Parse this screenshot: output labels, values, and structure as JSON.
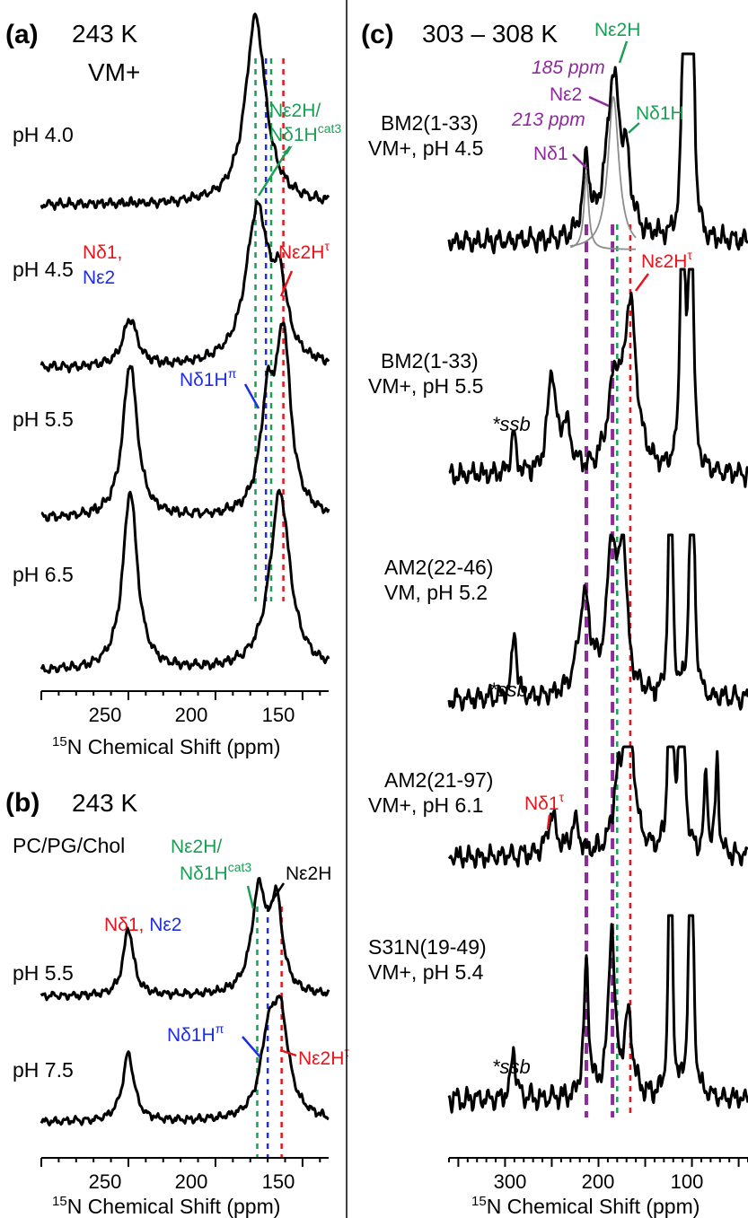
{
  "colors": {
    "spectrum": "#000000",
    "green": "#1b9e55",
    "red": "#e8141b",
    "blue": "#1f2ee0",
    "purple": "#8e2a9c",
    "fit": "#8c8c8c"
  },
  "chart_data": [
    {
      "type": "line",
      "panel_label": "(a)",
      "header": "243 K",
      "subheader": "VM+",
      "xlabel_prefix": "15",
      "xlabel": "N Chemical Shift (ppm)",
      "xlim": [
        300,
        135
      ],
      "xticks": [
        "250",
        "200",
        "150"
      ],
      "traces": [
        {
          "label": "pH 4.0",
          "peaks": [
            {
              "x": 177,
              "h": 1.0,
              "w": 7
            }
          ]
        },
        {
          "label": "pH 4.5",
          "peaks": [
            {
              "x": 249,
              "h": 0.25,
              "w": 5
            },
            {
              "x": 176,
              "h": 0.82,
              "w": 8
            },
            {
              "x": 163,
              "h": 0.35,
              "w": 5
            }
          ]
        },
        {
          "label": "pH 5.5",
          "peaks": [
            {
              "x": 249,
              "h": 0.82,
              "w": 5
            },
            {
              "x": 170,
              "h": 0.55,
              "w": 5
            },
            {
              "x": 161,
              "h": 0.92,
              "w": 5
            }
          ]
        },
        {
          "label": "pH 6.5",
          "peaks": [
            {
              "x": 249,
              "h": 0.95,
              "w": 5
            },
            {
              "x": 163,
              "h": 0.95,
              "w": 7
            }
          ]
        }
      ],
      "annotations": [
        {
          "text": "Nε2H/",
          "color": "green"
        },
        {
          "text": "Nδ1H",
          "sup": "cat3",
          "color": "green"
        },
        {
          "text": "Nδ1,",
          "color": "red"
        },
        {
          "text": "Nε2",
          "color": "blue"
        },
        {
          "text": "Nε2H",
          "sup": "τ",
          "color": "red"
        },
        {
          "text": "Nδ1H",
          "sup": "π",
          "color": "blue"
        }
      ],
      "reference_lines": [
        {
          "x": 177,
          "color": "green"
        },
        {
          "x": 168,
          "color": "green"
        },
        {
          "x": 161,
          "color": "red"
        },
        {
          "x": 171,
          "color": "blue"
        }
      ]
    },
    {
      "type": "line",
      "panel_label": "(b)",
      "header": "243 K",
      "subheader": "PC/PG/Chol",
      "xlabel_prefix": "15",
      "xlabel": "N Chemical Shift (ppm)",
      "xlim": [
        300,
        135
      ],
      "xticks": [
        "250",
        "200",
        "150"
      ],
      "traces": [
        {
          "label": "pH 5.5",
          "peaks": [
            {
              "x": 250,
              "h": 0.6,
              "w": 3.5
            },
            {
              "x": 175,
              "h": 0.92,
              "w": 5
            },
            {
              "x": 165,
              "h": 0.78,
              "w": 4
            }
          ]
        },
        {
          "label": "pH 7.5",
          "peaks": [
            {
              "x": 250,
              "h": 0.6,
              "w": 4
            },
            {
              "x": 170,
              "h": 0.55,
              "w": 5
            },
            {
              "x": 163,
              "h": 0.92,
              "w": 6
            }
          ]
        }
      ],
      "annotations": [
        {
          "text": "Nε2H/",
          "color": "green"
        },
        {
          "text": "Nδ1H",
          "sup": "cat3",
          "color": "green"
        },
        {
          "text": "Nε2H",
          "color": "black"
        },
        {
          "text": "Nδ1, ",
          "color": "red"
        },
        {
          "text": "Nε2",
          "color": "blue"
        },
        {
          "text": "Nδ1H",
          "sup": "π",
          "color": "blue"
        },
        {
          "text": "Nε2H",
          "sup": "τ",
          "color": "red"
        }
      ],
      "reference_lines": [
        {
          "x": 176,
          "color": "green"
        },
        {
          "x": 170,
          "color": "blue"
        },
        {
          "x": 162,
          "color": "red"
        }
      ]
    },
    {
      "type": "line",
      "panel_label": "(c)",
      "header": "303 – 308 K",
      "xlabel_prefix": "15",
      "xlabel": "N Chemical Shift (ppm)",
      "xlim": [
        360,
        40
      ],
      "xticks": [
        "300",
        "200",
        "100"
      ],
      "traces": [
        {
          "label1": "BM2(1-33)",
          "label2": "VM+, pH 4.5",
          "peaks": [
            {
              "x": 213,
              "h": 0.42,
              "w": 4
            },
            {
              "x": 184,
              "h": 0.9,
              "w": 9
            },
            {
              "x": 170,
              "h": 0.3,
              "w": 5
            },
            {
              "x": 108,
              "h": 3.0,
              "w": 1.8
            },
            {
              "x": 100,
              "h": 3.0,
              "w": 1.8
            }
          ]
        },
        {
          "label1": "BM2(1-33)",
          "label2": "VM+, pH 5.5",
          "peaks": [
            {
              "x": 291,
              "h": 0.22,
              "w": 3
            },
            {
              "x": 250,
              "h": 0.55,
              "w": 5
            },
            {
              "x": 235,
              "h": 0.25,
              "w": 6
            },
            {
              "x": 183,
              "h": 0.45,
              "w": 8
            },
            {
              "x": 166,
              "h": 0.9,
              "w": 8
            },
            {
              "x": 110,
              "h": 3.0,
              "w": 1.8
            },
            {
              "x": 101,
              "h": 3.0,
              "w": 1.8
            }
          ]
        },
        {
          "label1": "AM2(22-46)",
          "label2": "VM, pH 5.2",
          "peaks": [
            {
              "x": 290,
              "h": 0.38,
              "w": 3
            },
            {
              "x": 215,
              "h": 0.55,
              "w": 8
            },
            {
              "x": 186,
              "h": 0.8,
              "w": 6
            },
            {
              "x": 174,
              "h": 0.82,
              "w": 5
            },
            {
              "x": 123,
              "h": 3.0,
              "w": 1.5
            },
            {
              "x": 100,
              "h": 3.0,
              "w": 1.8
            }
          ]
        },
        {
          "label1": "AM2(21-97)",
          "label2": "VM+, pH 6.1",
          "peaks": [
            {
              "x": 250,
              "h": 0.22,
              "w": 6
            },
            {
              "x": 225,
              "h": 0.18,
              "w": 5
            },
            {
              "x": 180,
              "h": 0.3,
              "w": 5
            },
            {
              "x": 168,
              "h": 0.95,
              "w": 6
            },
            {
              "x": 123,
              "h": 3.0,
              "w": 1.5
            },
            {
              "x": 111,
              "h": 3.0,
              "w": 1.8
            },
            {
              "x": 85,
              "h": 0.45,
              "w": 2
            },
            {
              "x": 73,
              "h": 0.55,
              "w": 2
            }
          ]
        },
        {
          "label1": "S31N(19-49)",
          "label2": "VM+, pH 5.4",
          "peaks": [
            {
              "x": 291,
              "h": 0.28,
              "w": 3
            },
            {
              "x": 213,
              "h": 0.75,
              "w": 3
            },
            {
              "x": 186,
              "h": 0.95,
              "w": 4
            },
            {
              "x": 168,
              "h": 0.45,
              "w": 5
            },
            {
              "x": 123,
              "h": 3.0,
              "w": 1.5
            },
            {
              "x": 101,
              "h": 3.0,
              "w": 1.8
            }
          ]
        }
      ],
      "fit_peaks": [
        {
          "x": 213,
          "h": 0.42,
          "w": 3
        },
        {
          "x": 184,
          "h": 0.85,
          "w": 7
        }
      ],
      "ssb": "*ssb",
      "annotations": [
        {
          "text": "Nε2H",
          "color": "green"
        },
        {
          "text": "185 ppm",
          "color": "purple"
        },
        {
          "text": "Nε2",
          "color": "purple"
        },
        {
          "text": "Nδ1H",
          "color": "green"
        },
        {
          "text": "213 ppm",
          "color": "purple"
        },
        {
          "text": "Nδ1",
          "color": "purple"
        },
        {
          "text": "Nε2H",
          "sup": "τ",
          "color": "red"
        },
        {
          "text": "Nδ1",
          "sup": "τ",
          "color": "red"
        }
      ],
      "reference_lines": [
        {
          "x": 213,
          "color": "purple",
          "bold": true
        },
        {
          "x": 185,
          "color": "purple",
          "bold": true
        },
        {
          "x": 180,
          "color": "green"
        },
        {
          "x": 166,
          "color": "red"
        }
      ]
    }
  ]
}
